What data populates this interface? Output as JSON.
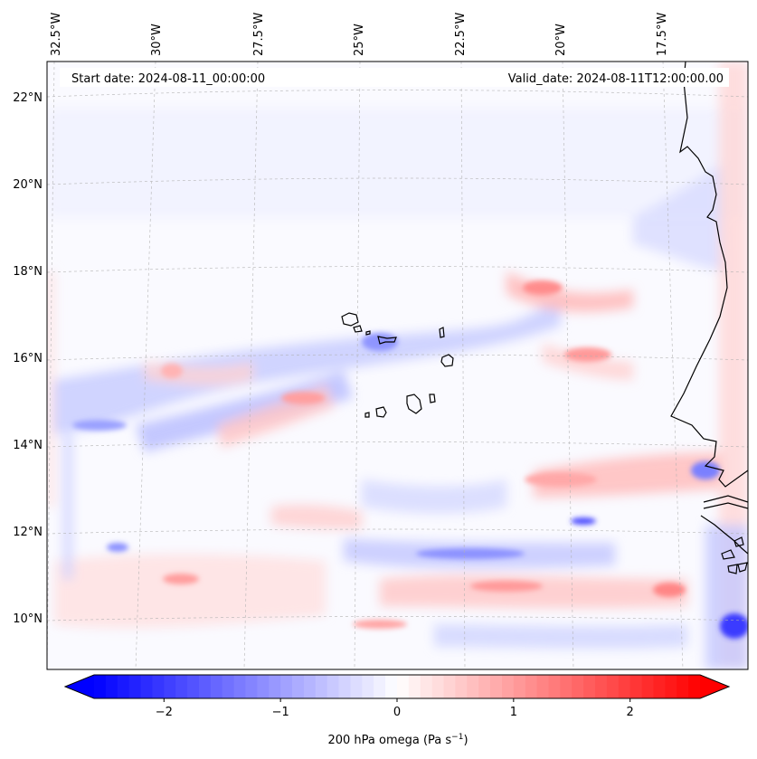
{
  "map": {
    "start_date": "Start date: 2024-08-11_00:00:00",
    "valid_date": "Valid_date: 2024-08-11T12:00:00.00",
    "lon_labels": [
      "32.5°W",
      "30°W",
      "27.5°W",
      "25°W",
      "22.5°W",
      "20°W",
      "17.5°W"
    ],
    "lat_labels": [
      "22°N",
      "20°N",
      "18°N",
      "16°N",
      "14°N",
      "12°N",
      "10°N"
    ],
    "projection": "lambert-conformal",
    "gridlines": true,
    "field": "200 hPa omega",
    "coastline_color": "#000000"
  },
  "colorbar": {
    "label": "200 hPa omega (Pa s",
    "label_sup": "−1",
    "label_end": ")",
    "ticks": [
      "−2",
      "−1",
      "0",
      "1",
      "2"
    ],
    "tick_values": [
      -2,
      -1,
      0,
      1,
      2
    ],
    "range": [
      -2.6,
      2.6
    ],
    "extend": "both",
    "colormap": "bwr",
    "colors": {
      "low": "#0000ff",
      "mid": "#ffffff",
      "high": "#ff0000"
    }
  }
}
